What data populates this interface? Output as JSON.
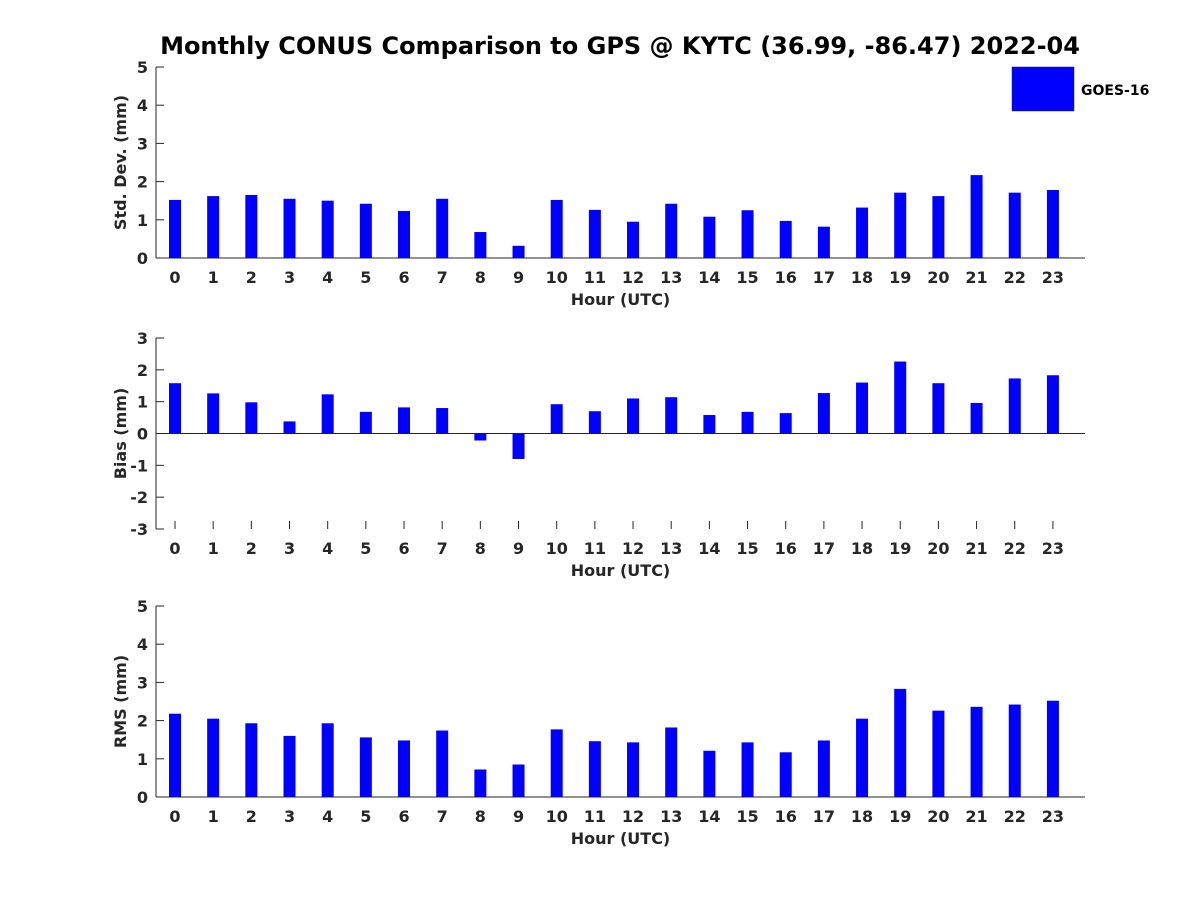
{
  "chart_data": {
    "title": "Monthly CONUS Comparison to GPS @ KYTC (36.99, -86.47) 2022-04",
    "type": "bar",
    "legend": {
      "placement": "top-right",
      "entries": [
        "GOES-16"
      ]
    },
    "colors": {
      "bar": "#0000ff",
      "axis": "#262626"
    },
    "categories": [
      "0",
      "1",
      "2",
      "3",
      "4",
      "5",
      "6",
      "7",
      "8",
      "9",
      "10",
      "11",
      "12",
      "13",
      "14",
      "15",
      "16",
      "17",
      "18",
      "19",
      "20",
      "21",
      "22",
      "23"
    ],
    "panels": [
      {
        "ylabel": "Std. Dev. (mm)",
        "xlabel": "Hour (UTC)",
        "ylim": [
          0,
          5
        ],
        "yticks": [
          "0",
          "1",
          "2",
          "3",
          "4",
          "5"
        ],
        "series": [
          {
            "name": "GOES-16",
            "values": [
              1.52,
              1.62,
              1.65,
              1.55,
              1.5,
              1.42,
              1.23,
              1.55,
              0.68,
              0.32,
              1.52,
              1.26,
              0.95,
              1.42,
              1.08,
              1.25,
              0.97,
              0.82,
              1.32,
              1.71,
              1.62,
              2.17,
              1.71,
              1.78
            ]
          }
        ]
      },
      {
        "ylabel": "Bias (mm)",
        "xlabel": "Hour (UTC)",
        "ylim": [
          -3,
          3
        ],
        "yticks": [
          "-3",
          "-2",
          "-1",
          "0",
          "1",
          "2",
          "3"
        ],
        "series": [
          {
            "name": "GOES-16",
            "values": [
              1.58,
              1.26,
              0.98,
              0.38,
              1.23,
              0.68,
              0.82,
              0.8,
              -0.22,
              -0.8,
              0.92,
              0.7,
              1.1,
              1.14,
              0.58,
              0.68,
              0.64,
              1.27,
              1.6,
              2.26,
              1.58,
              0.96,
              1.73,
              1.83
            ]
          }
        ]
      },
      {
        "ylabel": "RMS (mm)",
        "xlabel": "Hour (UTC)",
        "ylim": [
          0,
          5
        ],
        "yticks": [
          "0",
          "1",
          "2",
          "3",
          "4",
          "5"
        ],
        "series": [
          {
            "name": "GOES-16",
            "values": [
              2.18,
              2.05,
              1.93,
              1.6,
              1.93,
              1.56,
              1.48,
              1.74,
              0.72,
              0.85,
              1.77,
              1.46,
              1.43,
              1.82,
              1.21,
              1.43,
              1.17,
              1.48,
              2.05,
              2.83,
              2.26,
              2.36,
              2.42,
              2.52
            ]
          }
        ]
      }
    ]
  }
}
